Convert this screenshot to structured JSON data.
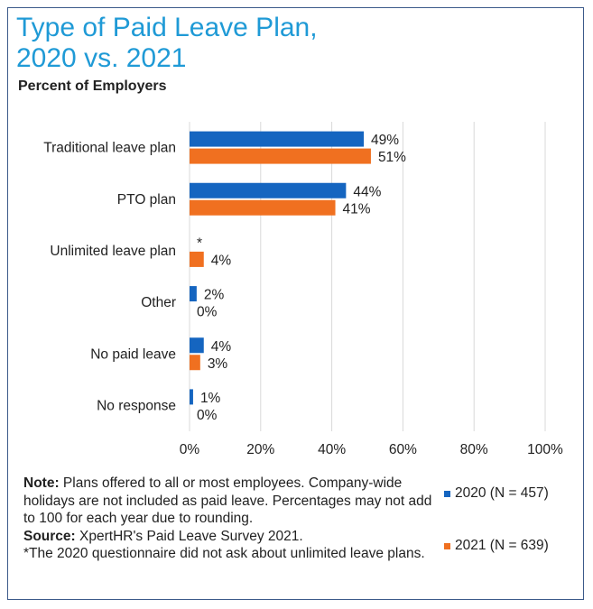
{
  "chart_data": {
    "type": "bar",
    "orientation": "horizontal",
    "title_line1": "Type of Paid Leave Plan,",
    "title_line2": "2020 vs. 2021",
    "subtitle": "Percent of Employers",
    "categories": [
      "Traditional leave plan",
      "PTO plan",
      "Unlimited leave plan",
      "Other",
      "No paid leave",
      "No response"
    ],
    "series": [
      {
        "name": "2020 (N = 457)",
        "color": "#1565c0",
        "values": [
          49,
          44,
          null,
          2,
          4,
          1
        ],
        "labels": [
          "49%",
          "44%",
          "*",
          "2%",
          "4%",
          "1%"
        ]
      },
      {
        "name": "2021 (N = 639)",
        "color": "#f07020",
        "values": [
          51,
          41,
          4,
          0,
          3,
          0
        ],
        "labels": [
          "51%",
          "41%",
          "4%",
          "0%",
          "3%",
          "0%"
        ]
      }
    ],
    "xlim": [
      0,
      100
    ],
    "xticks": [
      "0%",
      "20%",
      "40%",
      "60%",
      "80%",
      "100%"
    ],
    "grid": true,
    "legend_position": "bottom-right"
  },
  "notes": {
    "note_label": "Note:",
    "note_text": " Plans offered to all or most employees. Company-wide holidays are not included as paid leave. Percentages may not add to 100 for each year due to rounding.",
    "source_label": "Source:",
    "source_text": " XpertHR's Paid Leave Survey 2021.",
    "footnote": "*The 2020 questionnaire did not ask about unlimited leave plans."
  }
}
